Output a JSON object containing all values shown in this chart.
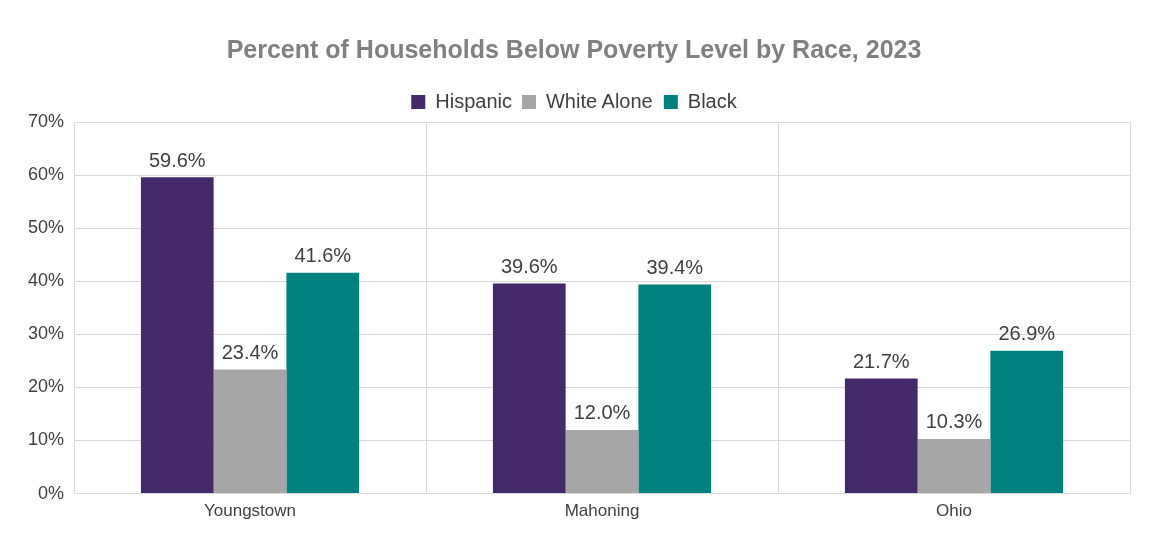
{
  "chart_data": {
    "type": "bar",
    "title": "Percent of Households Below Poverty Level by Race, 2023",
    "categories": [
      "Youngstown",
      "Mahoning",
      "Ohio"
    ],
    "series": [
      {
        "name": "Hispanic",
        "color": "#44296b",
        "values": [
          59.6,
          39.6,
          21.7
        ],
        "value_labels": [
          "59.6%",
          "39.6%",
          "21.7%"
        ]
      },
      {
        "name": "White Alone",
        "color": "#a6a6a6",
        "values": [
          23.4,
          12.0,
          10.3
        ],
        "value_labels": [
          "23.4%",
          "12.0%",
          "10.3%"
        ]
      },
      {
        "name": "Black",
        "color": "#008080",
        "values": [
          41.6,
          39.4,
          26.9
        ],
        "value_labels": [
          "41.6%",
          "39.4%",
          "26.9%"
        ]
      }
    ],
    "ylim": [
      0,
      70
    ],
    "yticks": [
      {
        "value": 0,
        "label": "0%"
      },
      {
        "value": 10,
        "label": "10%"
      },
      {
        "value": 20,
        "label": "20%"
      },
      {
        "value": 30,
        "label": "30%"
      },
      {
        "value": 40,
        "label": "40%"
      },
      {
        "value": 50,
        "label": "50%"
      },
      {
        "value": 60,
        "label": "60%"
      },
      {
        "value": 70,
        "label": "70%"
      }
    ],
    "grid": true,
    "legend": "top"
  }
}
